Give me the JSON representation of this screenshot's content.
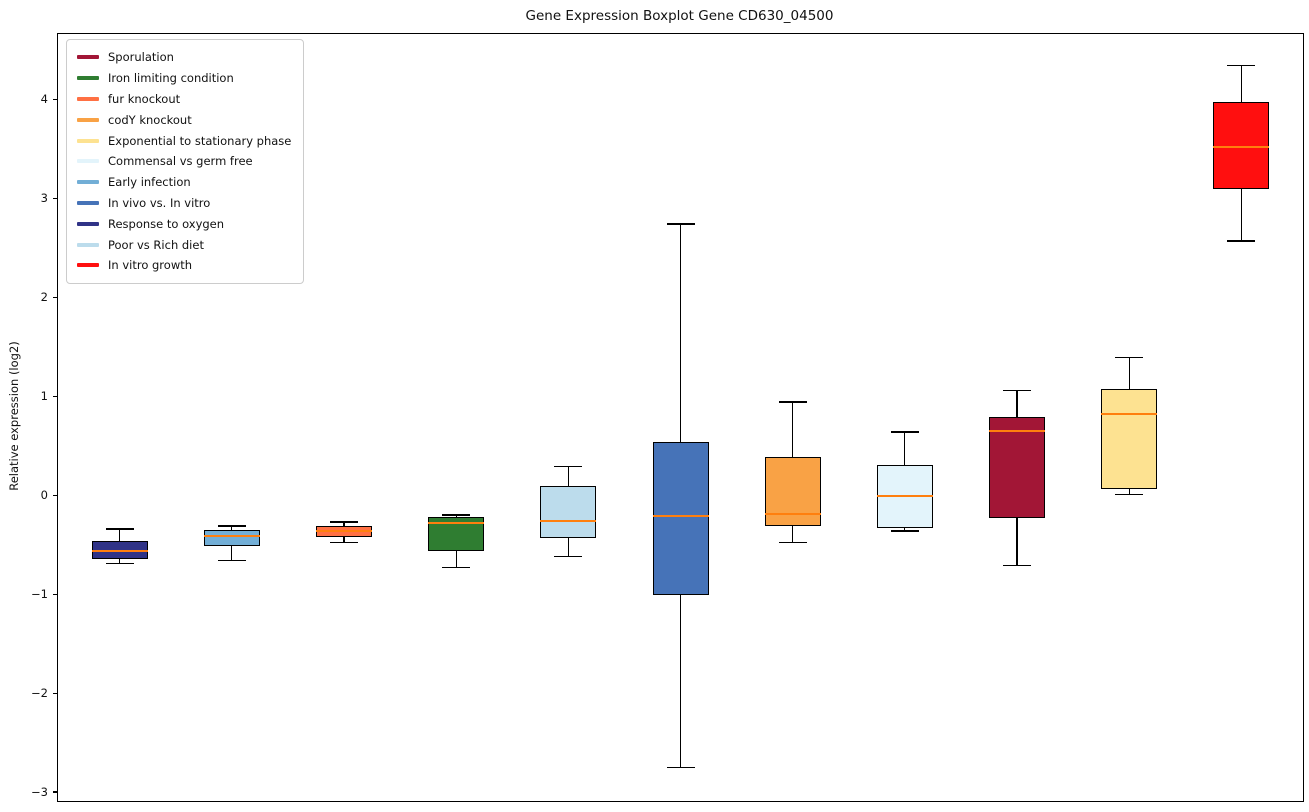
{
  "chart_data": {
    "type": "boxplot",
    "title": "Gene Expression Boxplot Gene CD630_04500",
    "ylabel": "Relative expression (log2)",
    "xlabel": "",
    "ylim": [
      -3.08,
      4.67
    ],
    "grid": false,
    "legend_position": "upper-left",
    "median_color": "#ff7f0e",
    "box_edge_color": "#000000",
    "yticks": [
      {
        "value": -3,
        "label": "−3"
      },
      {
        "value": -2,
        "label": "−2"
      },
      {
        "value": -1,
        "label": "−1"
      },
      {
        "value": 0,
        "label": "0"
      },
      {
        "value": 1,
        "label": "1"
      },
      {
        "value": 2,
        "label": "2"
      },
      {
        "value": 3,
        "label": "3"
      },
      {
        "value": 4,
        "label": "4"
      }
    ],
    "legend": [
      {
        "label": "Sporulation",
        "color": "#a21636"
      },
      {
        "label": "Iron limiting condition",
        "color": "#2f7d31"
      },
      {
        "label": "fur knockout",
        "color": "#ff7043"
      },
      {
        "label": "codY knockout",
        "color": "#f9a245"
      },
      {
        "label": "Exponential to stationary phase",
        "color": "#fde291"
      },
      {
        "label": "Commensal vs germ free",
        "color": "#e3f4fb"
      },
      {
        "label": "Early infection",
        "color": "#72aed6"
      },
      {
        "label": "In vivo vs. In vitro",
        "color": "#4673b8"
      },
      {
        "label": "Response to oxygen",
        "color": "#303387"
      },
      {
        "label": "Poor vs Rich diet",
        "color": "#bcdcec"
      },
      {
        "label": "In vitro growth",
        "color": "#ff0f0f"
      }
    ],
    "boxes": [
      {
        "name": "Response to oxygen",
        "color": "#303387",
        "whisker_low": -0.68,
        "q1": -0.63,
        "median": -0.55,
        "q3": -0.45,
        "whisker_high": -0.33
      },
      {
        "name": "Early infection",
        "color": "#72aed6",
        "whisker_low": -0.65,
        "q1": -0.5,
        "median": -0.4,
        "q3": -0.34,
        "whisker_high": -0.3
      },
      {
        "name": "fur knockout",
        "color": "#ff7043",
        "whisker_low": -0.47,
        "q1": -0.41,
        "median": -0.35,
        "q3": -0.3,
        "whisker_high": -0.26
      },
      {
        "name": "Iron limiting condition",
        "color": "#2f7d31",
        "whisker_low": -0.72,
        "q1": -0.55,
        "median": -0.27,
        "q3": -0.21,
        "whisker_high": -0.19
      },
      {
        "name": "Poor vs Rich diet",
        "color": "#bcdcec",
        "whisker_low": -0.61,
        "q1": -0.42,
        "median": -0.25,
        "q3": 0.1,
        "whisker_high": 0.3
      },
      {
        "name": "In vivo vs. In vitro",
        "color": "#4673b8",
        "whisker_low": -2.74,
        "q1": -1.0,
        "median": -0.2,
        "q3": 0.55,
        "whisker_high": 2.75
      },
      {
        "name": "codY knockout",
        "color": "#f9a245",
        "whisker_low": -0.47,
        "q1": -0.3,
        "median": -0.18,
        "q3": 0.4,
        "whisker_high": 0.95
      },
      {
        "name": "Commensal vs germ free",
        "color": "#e3f4fb",
        "whisker_low": -0.35,
        "q1": -0.32,
        "median": 0.0,
        "q3": 0.31,
        "whisker_high": 0.65
      },
      {
        "name": "Sporulation",
        "color": "#a21636",
        "whisker_low": -0.7,
        "q1": -0.22,
        "median": 0.66,
        "q3": 0.8,
        "whisker_high": 1.07
      },
      {
        "name": "Exponential to stationary phase",
        "color": "#fde291",
        "whisker_low": 0.02,
        "q1": 0.07,
        "median": 0.83,
        "q3": 1.08,
        "whisker_high": 1.4
      },
      {
        "name": "In vitro growth",
        "color": "#ff0f0f",
        "whisker_low": 2.58,
        "q1": 3.1,
        "median": 3.53,
        "q3": 3.98,
        "whisker_high": 4.35
      }
    ]
  }
}
